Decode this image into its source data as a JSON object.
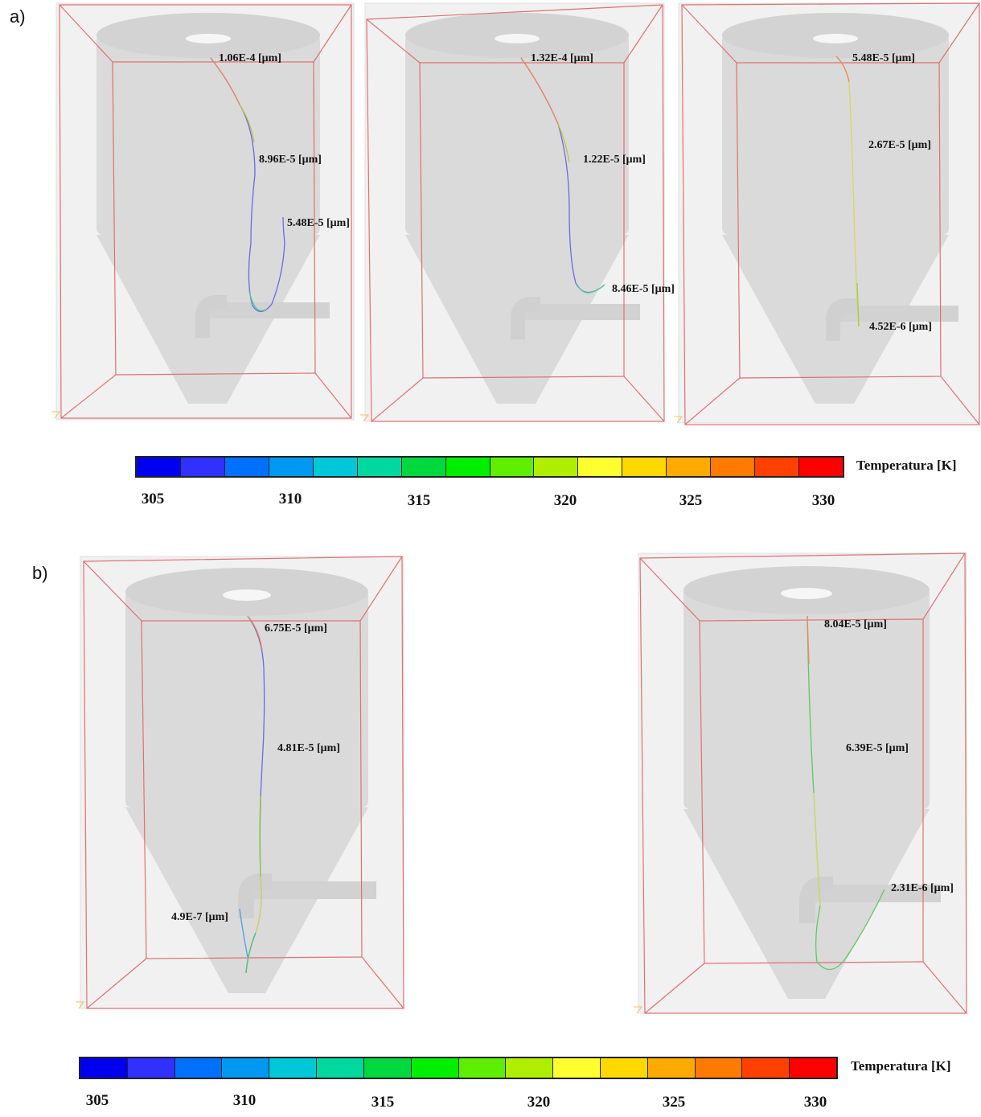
{
  "panels": {
    "a": {
      "label": "a)"
    },
    "b": {
      "label": "b)"
    }
  },
  "trajectories": {
    "a1": {
      "labels": [
        "1.06E-4 [μm]",
        "8.96E-5 [μm]",
        "5.48E-5 [μm]"
      ]
    },
    "a2": {
      "labels": [
        "1.32E-4 [μm]",
        "1.22E-5 [μm]",
        "8.46E-5 [μm]"
      ]
    },
    "a3": {
      "labels": [
        "5.48E-5 [μm]",
        "2.67E-5 [μm]",
        "4.52E-6 [μm]"
      ]
    },
    "b1": {
      "labels": [
        "6.75E-5 [μm]",
        "4.81E-5 [μm]",
        "4.9E-7 [μm]"
      ]
    },
    "b2": {
      "labels": [
        "8.04E-5 [μm]",
        "6.39E-5 [μm]",
        "2.31E-6 [μm]"
      ]
    }
  },
  "colorbar": {
    "title": "Temperatura [K]",
    "ticks": [
      "305",
      "310",
      "315",
      "320",
      "325",
      "330"
    ],
    "tick_values": [
      305,
      310,
      315,
      320,
      325,
      330
    ],
    "range": [
      305,
      330
    ],
    "colors": [
      "#0000f0",
      "#3030ff",
      "#0070ff",
      "#0098f0",
      "#00c8d8",
      "#00d8a0",
      "#00d840",
      "#00ee00",
      "#60ee00",
      "#b0ee00",
      "#ffff30",
      "#ffd800",
      "#ffaa00",
      "#ff7a00",
      "#ff4000",
      "#ff0000"
    ]
  }
}
